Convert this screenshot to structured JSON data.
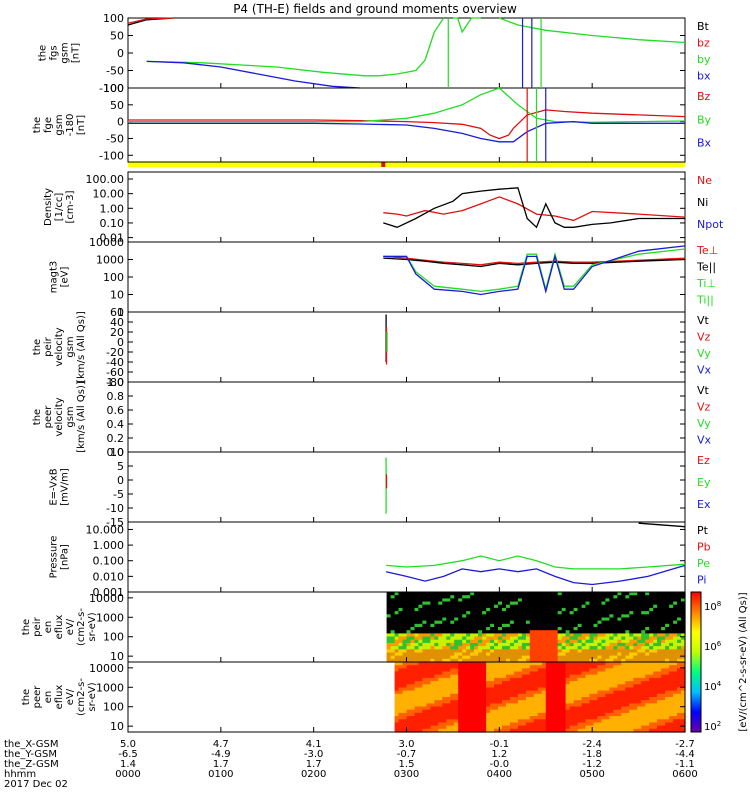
{
  "title": "P4 (TH-E) fields and ground moments overview",
  "colors": {
    "black": "#000000",
    "red": "#e01010",
    "green": "#22dd22",
    "blue": "#1a1adc",
    "yellow": "#ffff00"
  },
  "chart_data": [
    {
      "type": "line",
      "id": "fgs",
      "ylabel": [
        "the",
        "fgs",
        "gsm",
        "[nT]"
      ],
      "ylim": [
        -100,
        100
      ],
      "yticks": [
        100,
        50,
        0,
        -50,
        -100
      ],
      "legend": [
        "Bt",
        "bz",
        "by",
        "bx"
      ],
      "series": [
        {
          "name": "Bt",
          "color": "black",
          "x": [
            0.0,
            0.2,
            0.5
          ],
          "y": [
            80,
            95,
            100
          ]
        },
        {
          "name": "bz",
          "color": "red",
          "x": [
            0.0,
            0.2,
            0.5
          ],
          "y": [
            85,
            97,
            100
          ]
        },
        {
          "name": "by",
          "color": "green",
          "x": [
            0.2,
            0.8,
            1.6,
            2.1,
            2.4,
            2.55,
            2.7,
            2.9,
            3.1,
            3.2,
            3.25,
            3.3,
            3.4,
            3.45,
            3.5,
            3.55,
            3.6,
            3.7,
            3.8,
            3.9,
            4.0,
            4.2,
            4.5,
            5.0,
            5.5,
            6.0
          ],
          "y": [
            -24,
            -28,
            -40,
            -55,
            -62,
            -65,
            -65,
            -60,
            -50,
            -20,
            20,
            60,
            100,
            null,
            100,
            100,
            60,
            100,
            100,
            null,
            100,
            80,
            65,
            50,
            38,
            30
          ]
        },
        {
          "name": "bx",
          "color": "blue",
          "x": [
            0.2,
            0.6,
            1.0,
            1.4,
            1.8,
            2.2,
            2.5
          ],
          "y": [
            -24,
            -28,
            -40,
            -60,
            -80,
            -95,
            -100
          ]
        }
      ]
    },
    {
      "type": "line",
      "id": "fge",
      "ylabel": [
        "the",
        "fge",
        "gsm",
        "-180",
        "[nT]"
      ],
      "ylim": [
        -120,
        100
      ],
      "yticks": [
        100,
        50,
        0,
        -50,
        -100
      ],
      "legend": [
        "Bz",
        "By",
        "Bx"
      ],
      "series": [
        {
          "name": "Bz",
          "color": "red",
          "x": [
            0.0,
            1.0,
            2.0,
            2.5,
            3.0,
            3.3,
            3.6,
            3.8,
            3.9,
            4.0,
            4.1,
            4.15,
            4.3,
            4.5,
            4.7,
            5.0,
            5.5,
            6.0
          ],
          "y": [
            5,
            5,
            5,
            3,
            0,
            -3,
            -8,
            -20,
            -40,
            -50,
            -40,
            -20,
            20,
            35,
            30,
            25,
            20,
            15
          ]
        },
        {
          "name": "By",
          "color": "green",
          "x": [
            0.0,
            1.0,
            2.0,
            2.5,
            3.0,
            3.3,
            3.6,
            3.8,
            4.0,
            4.2,
            4.4,
            4.6,
            5.0,
            5.5,
            6.0
          ],
          "y": [
            0,
            0,
            0,
            0,
            10,
            25,
            50,
            80,
            100,
            50,
            10,
            0,
            -2,
            0,
            2
          ]
        },
        {
          "name": "Bx",
          "color": "blue",
          "x": [
            0.0,
            1.0,
            2.0,
            2.5,
            3.0,
            3.3,
            3.6,
            3.8,
            4.0,
            4.15,
            4.3,
            4.5,
            4.8,
            5.0,
            5.5,
            6.0
          ],
          "y": [
            -5,
            -5,
            -5,
            -7,
            -10,
            -20,
            -35,
            -50,
            -60,
            -60,
            -30,
            -5,
            0,
            -5,
            -5,
            -5
          ]
        }
      ]
    },
    {
      "type": "line",
      "id": "density",
      "ylabel": [
        "Density",
        "[1/cc]",
        "[cm-3]"
      ],
      "log": true,
      "ylim": [
        0.005,
        300
      ],
      "yticks": [
        "100.00",
        "10.00",
        "1.00",
        "0.10",
        "0.01"
      ],
      "legend": [
        "Ne",
        "Ni",
        "Npot"
      ],
      "series": [
        {
          "name": "Ne",
          "color": "red",
          "x": [
            2.75,
            2.9,
            3.0,
            3.2,
            3.4,
            3.6,
            3.8,
            4.0,
            4.2,
            4.4,
            4.6,
            4.8,
            5.0,
            5.5,
            6.0
          ],
          "y": [
            0.5,
            0.4,
            0.3,
            0.7,
            0.4,
            0.7,
            2.0,
            6.0,
            2.0,
            0.4,
            0.3,
            0.15,
            0.6,
            0.4,
            0.25
          ]
        },
        {
          "name": "Ni",
          "color": "black",
          "x": [
            2.75,
            2.9,
            3.1,
            3.3,
            3.5,
            3.6,
            3.8,
            4.0,
            4.2,
            4.3,
            4.4,
            4.5,
            4.6,
            4.7,
            4.8,
            5.0,
            5.2,
            5.5,
            5.8,
            6.0
          ],
          "y": [
            0.1,
            0.05,
            0.2,
            1.0,
            3.0,
            10,
            15,
            20,
            25,
            0.2,
            0.05,
            2.0,
            0.1,
            0.05,
            0.05,
            0.08,
            0.1,
            0.2,
            0.2,
            0.2
          ]
        }
      ]
    },
    {
      "type": "line",
      "id": "temp",
      "ylabel": [
        "magt3",
        "[eV]"
      ],
      "log": true,
      "ylim": [
        1,
        10000
      ],
      "yticks": [
        10000,
        1000,
        100,
        10,
        1
      ],
      "legend": [
        "Te⊥",
        "Te||",
        "Ti⊥",
        "Ti||"
      ],
      "series": [
        {
          "name": "Te⊥",
          "color": "red",
          "x": [
            2.75,
            3.0,
            3.2,
            3.4,
            3.6,
            3.8,
            4.0,
            4.2,
            4.4,
            4.6,
            4.8,
            5.0,
            5.5,
            6.0
          ],
          "y": [
            1500,
            1200,
            900,
            700,
            600,
            500,
            700,
            600,
            700,
            800,
            700,
            700,
            900,
            1200
          ]
        },
        {
          "name": "Te||",
          "color": "black",
          "x": [
            2.75,
            3.0,
            3.2,
            3.4,
            3.6,
            3.8,
            4.0,
            4.2,
            4.4,
            4.6,
            4.8,
            5.0,
            5.5,
            6.0
          ],
          "y": [
            1200,
            1000,
            800,
            600,
            500,
            400,
            600,
            500,
            600,
            700,
            600,
            600,
            800,
            1000
          ]
        },
        {
          "name": "Ti⊥",
          "color": "green",
          "x": [
            2.75,
            3.0,
            3.1,
            3.3,
            3.6,
            3.8,
            4.0,
            4.2,
            4.3,
            4.4,
            4.5,
            4.6,
            4.7,
            4.8,
            5.0,
            5.5,
            6.0
          ],
          "y": [
            1500,
            1500,
            200,
            30,
            20,
            15,
            20,
            30,
            2000,
            2000,
            20,
            2000,
            30,
            30,
            500,
            2000,
            4000
          ]
        },
        {
          "name": "Ti||",
          "color": "blue",
          "x": [
            2.75,
            3.0,
            3.1,
            3.3,
            3.6,
            3.8,
            4.0,
            4.2,
            4.3,
            4.4,
            4.5,
            4.6,
            4.7,
            4.8,
            5.0,
            5.5,
            6.0
          ],
          "y": [
            1500,
            1500,
            150,
            20,
            15,
            10,
            15,
            20,
            1500,
            1500,
            15,
            1500,
            20,
            20,
            400,
            3000,
            6000
          ]
        }
      ]
    },
    {
      "type": "line",
      "id": "peir",
      "ylabel": [
        "the",
        "peir",
        "velocity",
        "gsm",
        "[km/s (All Qs)]"
      ],
      "ylim": [
        -80,
        60
      ],
      "yticks": [
        60,
        40,
        20,
        0,
        -20,
        -40,
        -60,
        -80
      ],
      "legend": [
        "Vt",
        "Vz",
        "Vy",
        "Vx"
      ],
      "series": [
        {
          "name": "Vt",
          "color": "black",
          "x": [
            2.78,
            2.78
          ],
          "y": [
            -40,
            55
          ]
        },
        {
          "name": "Vz",
          "color": "red",
          "x": [
            2.785,
            2.785
          ],
          "y": [
            -45,
            30
          ]
        },
        {
          "name": "Vy",
          "color": "green",
          "x": [
            2.79,
            2.79
          ],
          "y": [
            -20,
            20
          ]
        }
      ]
    },
    {
      "type": "line",
      "id": "peer",
      "ylabel": [
        "the",
        "peer",
        "velocity",
        "gsm",
        "[km/s (All Qs)]"
      ],
      "ylim": [
        0,
        1
      ],
      "yticks": [
        "1.0",
        "0.8",
        "0.6",
        "0.4",
        "0.2",
        "0.0"
      ],
      "legend": [
        "Vt",
        "Vz",
        "Vy",
        "Vx"
      ],
      "series": []
    },
    {
      "type": "line",
      "id": "efield",
      "ylabel": [
        "E=-VxB",
        "[mV/m]"
      ],
      "ylim": [
        -15,
        10
      ],
      "yticks": [
        10,
        5,
        0,
        -5,
        -10,
        -15
      ],
      "legend": [
        "Ez",
        "Ey",
        "Ex"
      ],
      "series": [
        {
          "name": "Ey",
          "color": "green",
          "x": [
            2.78,
            2.78
          ],
          "y": [
            -12,
            8
          ]
        },
        {
          "name": "Ez",
          "color": "red",
          "x": [
            2.785,
            2.785
          ],
          "y": [
            -3,
            2
          ]
        }
      ]
    },
    {
      "type": "line",
      "id": "pressure",
      "ylabel": [
        "Pressure",
        "[nPa]"
      ],
      "log": true,
      "ylim": [
        0.001,
        30
      ],
      "yticks": [
        "10.000",
        "1.000",
        "0.100",
        "0.010",
        "0.001"
      ],
      "legend": [
        "Pt",
        "Pb",
        "Pe",
        "Pi"
      ],
      "series": [
        {
          "name": "Pt",
          "color": "black",
          "x": [
            5.5,
            6.0
          ],
          "y": [
            25,
            15
          ]
        },
        {
          "name": "Pe",
          "color": "green",
          "x": [
            2.78,
            3.0,
            3.3,
            3.6,
            3.8,
            4.0,
            4.2,
            4.4,
            4.6,
            4.8,
            5.0,
            5.3,
            5.6,
            6.0
          ],
          "y": [
            0.05,
            0.04,
            0.05,
            0.1,
            0.2,
            0.1,
            0.2,
            0.1,
            0.04,
            0.03,
            0.03,
            0.03,
            0.04,
            0.06
          ]
        },
        {
          "name": "Pi",
          "color": "blue",
          "x": [
            2.78,
            3.0,
            3.2,
            3.4,
            3.6,
            3.8,
            4.0,
            4.2,
            4.4,
            4.6,
            4.8,
            5.0,
            5.3,
            5.6,
            6.0
          ],
          "y": [
            0.02,
            0.01,
            0.005,
            0.01,
            0.03,
            0.02,
            0.03,
            0.02,
            0.03,
            0.01,
            0.004,
            0.003,
            0.005,
            0.01,
            0.05
          ]
        }
      ]
    },
    {
      "type": "heatmap",
      "id": "peir_en",
      "ylabel": [
        "the",
        "peir",
        "en",
        "eflux",
        "eV/",
        "(cm2-s-",
        "sr-eV)"
      ],
      "log": true,
      "ylim": [
        5,
        20000
      ],
      "yticks": [
        10000,
        1000,
        100,
        10
      ]
    },
    {
      "type": "heatmap",
      "id": "peer_en",
      "ylabel": [
        "the",
        "peer",
        "en",
        "eflux",
        "eV/",
        "(cm2-s-",
        "sr-eV)"
      ],
      "log": true,
      "ylim": [
        5,
        20000
      ],
      "yticks": [
        10000,
        1000,
        100,
        10
      ]
    }
  ],
  "colorbar": {
    "label": "[eV/(cm^2-s-sr-eV) (All Qs)]",
    "ticks": [
      "10^8",
      "10^6",
      "10^4",
      "10^2"
    ]
  },
  "xaxis": {
    "rows": [
      {
        "label": "the_X-GSM",
        "values": [
          "5.0",
          "4.7",
          "4.1",
          "3.0",
          "-0.1",
          "-2.4",
          "-2.7"
        ]
      },
      {
        "label": "the_Y-GSM",
        "values": [
          "-6.5",
          "-4.9",
          "-3.0",
          "-0.7",
          "1.2",
          "-1.8",
          "-4.4"
        ]
      },
      {
        "label": "the_Z-GSM",
        "values": [
          "1.4",
          "1.7",
          "1.7",
          "1.5",
          "-0.0",
          "-1.2",
          "-1.1"
        ]
      },
      {
        "label": "hhmm",
        "values": [
          "0000",
          "0100",
          "0200",
          "0300",
          "0400",
          "0500",
          "0600"
        ]
      }
    ],
    "date": "2017 Dec 02"
  }
}
